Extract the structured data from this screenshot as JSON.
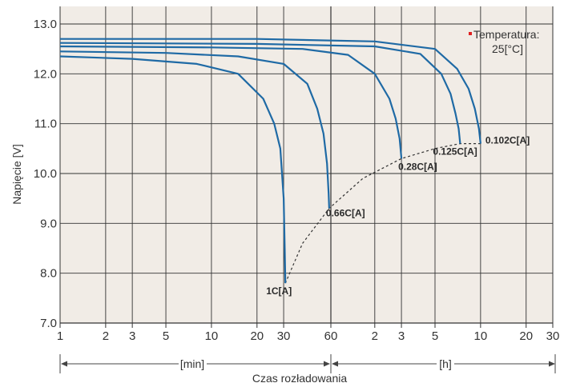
{
  "chart_data": {
    "type": "line",
    "title": "",
    "xlabel": "Czas rozładowania",
    "ylabel": "Napięcie [V]",
    "ylim": [
      7.0,
      13.0
    ],
    "y_ticks": [
      "7.0",
      "8.0",
      "9.0",
      "10.0",
      "11.0",
      "12.0",
      "13.0"
    ],
    "x_scale": "log",
    "x_ticks_min": [
      "1",
      "2",
      "3",
      "5",
      "10",
      "20",
      "30",
      "60"
    ],
    "x_ticks_h": [
      "2",
      "3",
      "5",
      "10",
      "20",
      "30"
    ],
    "min_unit_label": "[min]",
    "h_unit_label": "[h]",
    "grid": true,
    "legend_note": "Temperatura:",
    "legend_value": "25[°C]",
    "series_line_color": "#1f6aa5",
    "plot_bg_color": "#f1ece6",
    "legend_marker_color": "#e02020",
    "series": [
      {
        "name": "1C[A]",
        "x_minutes": [
          1,
          3,
          8,
          15,
          22,
          26,
          28.5,
          30,
          30.5,
          30.8
        ],
        "y": [
          12.35,
          12.3,
          12.2,
          12.0,
          11.5,
          11.0,
          10.5,
          9.5,
          8.5,
          7.8
        ]
      },
      {
        "name": "0.66C[A]",
        "x_minutes": [
          1,
          5,
          15,
          30,
          43,
          50,
          55,
          58,
          59.5,
          60
        ],
        "y": [
          12.45,
          12.42,
          12.35,
          12.2,
          11.8,
          11.3,
          10.8,
          10.2,
          9.6,
          9.3
        ]
      },
      {
        "name": "0.28C[A]",
        "x_minutes": [
          1,
          10,
          40,
          80,
          120,
          150,
          165,
          175,
          180
        ],
        "y": [
          12.55,
          12.53,
          12.5,
          12.38,
          12.0,
          11.5,
          11.1,
          10.7,
          10.3
        ]
      },
      {
        "name": "0.125C[A]",
        "x_minutes": [
          1,
          20,
          120,
          240,
          330,
          380,
          410,
          430,
          440
        ],
        "y": [
          12.62,
          12.6,
          12.55,
          12.4,
          12.0,
          11.6,
          11.2,
          10.9,
          10.6
        ]
      },
      {
        "name": "0.102C[A]",
        "x_minutes": [
          1,
          20,
          120,
          300,
          420,
          500,
          550,
          585,
          600
        ],
        "y": [
          12.7,
          12.7,
          12.65,
          12.5,
          12.1,
          11.7,
          11.3,
          10.9,
          10.6
        ]
      }
    ],
    "end_curve": {
      "x_minutes": [
        30.8,
        40,
        60,
        100,
        180,
        300,
        440,
        600
      ],
      "y": [
        7.8,
        8.6,
        9.3,
        9.9,
        10.3,
        10.5,
        10.6,
        10.6
      ]
    }
  }
}
